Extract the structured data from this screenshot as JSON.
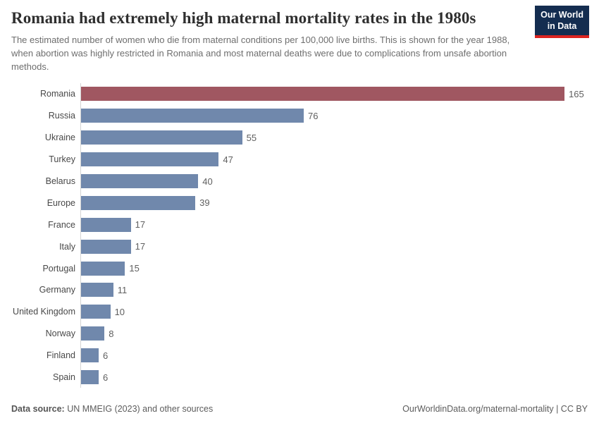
{
  "header": {
    "title": "Romania had extremely high maternal mortality rates in the 1980s",
    "subtitle": "The estimated number of women who die from maternal conditions per 100,000 live births. This is shown for the year 1988, when abortion was highly restricted in Romania and most maternal deaths were due to complications from unsafe abortion methods.",
    "logo": {
      "line1": "Our World",
      "line2": "in Data",
      "background_color": "#142d50",
      "underline_color": "#dc2420"
    }
  },
  "chart_data": {
    "type": "bar",
    "orientation": "horizontal",
    "title": "Romania had extremely high maternal mortality rates in the 1980s",
    "xlabel": "",
    "ylabel": "",
    "xlim": [
      0,
      165
    ],
    "grid": false,
    "legend": false,
    "value_labels": true,
    "categories": [
      "Romania",
      "Russia",
      "Ukraine",
      "Turkey",
      "Belarus",
      "Europe",
      "France",
      "Italy",
      "Portugal",
      "Germany",
      "United Kingdom",
      "Norway",
      "Finland",
      "Spain"
    ],
    "values": [
      165,
      76,
      55,
      47,
      40,
      39,
      17,
      17,
      15,
      11,
      10,
      8,
      6,
      6
    ],
    "highlighted_category": "Romania",
    "highlight_color": "#a05761",
    "bar_color": "#7088ac",
    "axis_line_color": "#d4d4d4"
  },
  "footer": {
    "datasource_label": "Data source:",
    "datasource_text": " UN MMEIG (2023) and other sources",
    "right_text": "OurWorldinData.org/maternal-mortality | CC BY"
  }
}
